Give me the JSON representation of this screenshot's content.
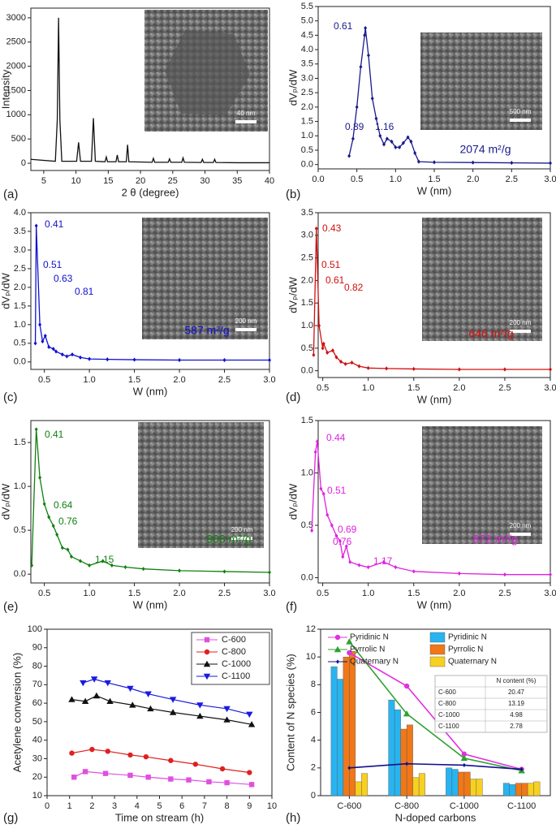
{
  "chart_data": [
    {
      "type": "line",
      "panel_label": "(a)",
      "x_label": "2 θ (degree)",
      "y_label": "Intensity",
      "color": "#111111",
      "image_scale": "40 nm",
      "x": [
        3,
        6.8,
        7.1,
        7.3,
        7.5,
        7.8,
        10.1,
        10.4,
        10.7,
        12.4,
        12.7,
        13.0,
        14.5,
        14.7,
        14.9,
        16.2,
        16.4,
        16.6,
        17.8,
        18.0,
        18.2,
        21.8,
        22.0,
        22.2,
        24.3,
        24.5,
        24.7,
        26.4,
        26.6,
        26.8,
        29.4,
        29.6,
        29.8,
        31.3,
        31.5,
        31.7,
        35,
        40
      ],
      "values": [
        80,
        40,
        900,
        3000,
        900,
        40,
        40,
        430,
        40,
        40,
        930,
        40,
        30,
        130,
        30,
        30,
        170,
        30,
        30,
        380,
        30,
        20,
        100,
        20,
        20,
        90,
        20,
        20,
        110,
        20,
        15,
        80,
        15,
        15,
        80,
        15,
        10,
        10
      ],
      "xlim": [
        3,
        40
      ],
      "xticks": [
        5,
        10,
        15,
        20,
        25,
        30,
        35,
        40
      ],
      "ylim": [
        -150,
        3200
      ],
      "yticks": [
        0,
        500,
        1000,
        1500,
        2000,
        2500,
        3000
      ]
    },
    {
      "type": "line",
      "panel_label": "(b)",
      "x_label": "W (nm)",
      "y_label": "dVₚ/dW",
      "color": "#1a1a8c",
      "marker": "diamond",
      "image_scale": "500 nm",
      "area": "2074 m²/g",
      "annotations": [
        "0.61",
        "0.89",
        "1.16"
      ],
      "x": [
        0.4,
        0.45,
        0.5,
        0.55,
        0.6,
        0.61,
        0.65,
        0.7,
        0.75,
        0.8,
        0.85,
        0.89,
        0.95,
        1.0,
        1.05,
        1.1,
        1.16,
        1.2,
        1.25,
        1.3,
        1.5,
        2.0,
        2.5,
        3.0
      ],
      "values": [
        0.3,
        0.9,
        2.0,
        3.4,
        4.5,
        4.75,
        3.8,
        2.3,
        1.6,
        1.0,
        0.7,
        0.9,
        0.8,
        0.6,
        0.6,
        0.75,
        0.95,
        0.8,
        0.4,
        0.1,
        0.08,
        0.07,
        0.06,
        0.05
      ],
      "xlim": [
        0,
        3
      ],
      "xticks": [
        {
          "value": 0,
          "label": "0.0"
        },
        0.5,
        {
          "value": 1,
          "label": "1.0"
        },
        1.5,
        {
          "value": 2,
          "label": "2.0"
        },
        2.5,
        {
          "value": 3,
          "label": "3.0"
        }
      ],
      "ylim": [
        -0.15,
        5.5
      ],
      "yticks": [
        {
          "value": 0,
          "label": "0.0"
        },
        0.5,
        {
          "value": 1,
          "label": "1.0"
        },
        1.5,
        {
          "value": 2,
          "label": "2.0"
        },
        2.5,
        {
          "value": 3,
          "label": "3.0"
        },
        3.5,
        {
          "value": 4,
          "label": "4.0"
        },
        4.5,
        {
          "value": 5,
          "label": "5.0"
        },
        5.5
      ]
    },
    {
      "type": "line",
      "panel_label": "(c)",
      "x_label": "W (nm)",
      "y_label": "dVₚ/dW",
      "color": "#1010d0",
      "marker": "diamond",
      "image_scale": "200 nm",
      "area": "587 m²/g",
      "annotations": [
        "0.41",
        "0.51",
        "0.63",
        "0.81"
      ],
      "x": [
        0.4,
        0.41,
        0.45,
        0.48,
        0.51,
        0.55,
        0.6,
        0.63,
        0.7,
        0.75,
        0.81,
        0.9,
        1.0,
        1.2,
        1.5,
        2.0,
        2.5,
        3.0
      ],
      "values": [
        0.5,
        3.65,
        1.0,
        0.55,
        0.7,
        0.4,
        0.35,
        0.28,
        0.2,
        0.15,
        0.2,
        0.12,
        0.08,
        0.07,
        0.06,
        0.05,
        0.05,
        0.05
      ],
      "xlim": [
        0.35,
        3
      ],
      "xticks": [
        0.5,
        {
          "value": 1,
          "label": "1.0"
        },
        1.5,
        {
          "value": 2,
          "label": "2.0"
        },
        2.5,
        {
          "value": 3,
          "label": "3.0"
        }
      ],
      "ylim": [
        -0.2,
        4
      ],
      "yticks": [
        {
          "value": 0,
          "label": "0.0"
        },
        0.5,
        {
          "value": 1,
          "label": "1.0"
        },
        1.5,
        {
          "value": 2,
          "label": "2.0"
        },
        2.5,
        {
          "value": 3,
          "label": "3.0"
        },
        3.5,
        {
          "value": 4,
          "label": "4.0"
        }
      ]
    },
    {
      "type": "line",
      "panel_label": "(d)",
      "x_label": "W (nm)",
      "y_label": "dVₚ/dW",
      "color": "#d01010",
      "marker": "diamond",
      "image_scale": "200 nm",
      "area": "646 m²/g",
      "annotations": [
        "0.43",
        "0.51",
        "0.61",
        "0.82"
      ],
      "x": [
        0.4,
        0.43,
        0.46,
        0.5,
        0.51,
        0.55,
        0.61,
        0.65,
        0.7,
        0.75,
        0.82,
        0.9,
        1.0,
        1.2,
        1.5,
        2.0,
        2.5,
        3.0
      ],
      "values": [
        0.35,
        3.15,
        1.0,
        0.5,
        0.6,
        0.4,
        0.45,
        0.3,
        0.2,
        0.15,
        0.18,
        0.1,
        0.06,
        0.05,
        0.04,
        0.03,
        0.03,
        0.03
      ],
      "xlim": [
        0.45,
        3
      ],
      "xticks": [
        0.5,
        {
          "value": 1,
          "label": "1.0"
        },
        1.5,
        {
          "value": 2,
          "label": "2.0"
        },
        2.5,
        {
          "value": 3,
          "label": "3.0"
        }
      ],
      "ylim": [
        -0.15,
        3.5
      ],
      "yticks": [
        {
          "value": 0,
          "label": "0.0"
        },
        0.5,
        {
          "value": 1,
          "label": "1.0"
        },
        1.5,
        {
          "value": 2,
          "label": "2.0"
        },
        2.5,
        {
          "value": 3,
          "label": "3.0"
        },
        3.5
      ]
    },
    {
      "type": "line",
      "panel_label": "(e)",
      "x_label": "W (nm)",
      "y_label": "dVₚ/dW",
      "color": "#108010",
      "marker": "diamond",
      "image_scale": "200 nm",
      "area": "903 m²/g",
      "annotations": [
        "0.41",
        "0.64",
        "0.76",
        "1.15"
      ],
      "x": [
        0.36,
        0.41,
        0.45,
        0.5,
        0.55,
        0.6,
        0.64,
        0.7,
        0.76,
        0.8,
        0.9,
        1.0,
        1.15,
        1.25,
        1.4,
        1.6,
        2.0,
        2.5,
        3.0
      ],
      "values": [
        0.1,
        1.65,
        1.1,
        0.8,
        0.65,
        0.55,
        0.45,
        0.3,
        0.28,
        0.2,
        0.15,
        0.1,
        0.15,
        0.1,
        0.08,
        0.06,
        0.04,
        0.03,
        0.02
      ],
      "xlim": [
        0.35,
        3
      ],
      "xticks": [
        0.5,
        {
          "value": 1,
          "label": "1.0"
        },
        1.5,
        {
          "value": 2,
          "label": "2.0"
        },
        2.5,
        {
          "value": 3,
          "label": "3.0"
        }
      ],
      "ylim": [
        -0.1,
        1.75
      ],
      "yticks": [
        {
          "value": 0,
          "label": "0.0"
        },
        0.5,
        {
          "value": 1,
          "label": "1.0"
        },
        1.5
      ]
    },
    {
      "type": "line",
      "panel_label": "(f)",
      "x_label": "W (nm)",
      "y_label": "dVₚ/dW",
      "color": "#e020e0",
      "marker": "diamond",
      "image_scale": "200 nm",
      "area": "872 m²/g",
      "annotations": [
        "0.44",
        "0.51",
        "0.69",
        "0.76",
        "1.17"
      ],
      "x": [
        0.38,
        0.42,
        0.44,
        0.48,
        0.51,
        0.55,
        0.6,
        0.65,
        0.69,
        0.72,
        0.76,
        0.8,
        0.9,
        1.0,
        1.17,
        1.3,
        1.5,
        2.0,
        2.5,
        3.0
      ],
      "values": [
        0.45,
        1.2,
        1.3,
        0.85,
        0.8,
        0.6,
        0.5,
        0.4,
        0.35,
        0.2,
        0.3,
        0.15,
        0.12,
        0.1,
        0.15,
        0.1,
        0.06,
        0.04,
        0.03,
        0.03
      ],
      "xlim": [
        0.45,
        3
      ],
      "xticks": [
        0.5,
        {
          "value": 1,
          "label": "1.0"
        },
        1.5,
        {
          "value": 2,
          "label": "2.0"
        },
        2.5,
        {
          "value": 3,
          "label": "3.0"
        }
      ],
      "ylim": [
        -0.05,
        1.5
      ],
      "yticks": [
        {
          "value": 0,
          "label": "0.0"
        },
        0.5,
        {
          "value": 1,
          "label": "1.0"
        },
        1.5
      ]
    },
    {
      "type": "multiline",
      "panel_label": "(g)",
      "x_label": "Time on stream (h)",
      "y_label": "Acetylene conversion (%)",
      "xlim": [
        0,
        10
      ],
      "xticks": [
        0,
        1,
        2,
        3,
        4,
        5,
        6,
        7,
        8,
        9,
        10
      ],
      "ylim": [
        10,
        100
      ],
      "yticks": [
        10,
        20,
        30,
        40,
        50,
        60,
        70,
        80,
        90,
        100
      ],
      "series": [
        {
          "name": "C-600",
          "color": "#e050e0",
          "marker": "square",
          "x": [
            1.2,
            1.7,
            2.6,
            3.7,
            4.5,
            5.5,
            6.3,
            7.2,
            8.0,
            9.1
          ],
          "values": [
            20,
            23,
            22,
            21,
            20,
            19,
            18.5,
            17.5,
            17,
            16
          ]
        },
        {
          "name": "C-800",
          "color": "#e02020",
          "marker": "circle",
          "x": [
            1.1,
            2.0,
            2.7,
            3.7,
            4.4,
            5.5,
            6.6,
            7.8,
            9.0
          ],
          "values": [
            33,
            35,
            34,
            32,
            31,
            29,
            27,
            24.5,
            22.5
          ]
        },
        {
          "name": "C-1000",
          "color": "#111111",
          "marker": "triangle",
          "x": [
            1.1,
            1.7,
            2.2,
            2.8,
            3.8,
            4.6,
            5.6,
            6.8,
            8.0,
            9.1
          ],
          "values": [
            62,
            61,
            64,
            61,
            59,
            57,
            55,
            53,
            51,
            48.5
          ]
        },
        {
          "name": "C-1100",
          "color": "#1a1ae0",
          "marker": "down",
          "x": [
            1.6,
            2.1,
            2.7,
            3.7,
            4.5,
            5.6,
            6.8,
            8.0,
            9.0
          ],
          "values": [
            71,
            73,
            71,
            68,
            65,
            62,
            59,
            57,
            54
          ]
        }
      ]
    },
    {
      "type": "bar",
      "panel_label": "(h)",
      "x_label": "N-doped carbons",
      "y_label": "Content of N species (%)",
      "categories": [
        "C-600",
        "C-800",
        "C-1000",
        "C-1100"
      ],
      "ylim": [
        0,
        12
      ],
      "yticks": [
        0,
        2,
        4,
        6,
        8,
        10,
        12
      ],
      "bar_series": [
        {
          "name": "Pyridinic N",
          "color": "#28b4f0",
          "values": [
            [
              9.3,
              8.4
            ],
            [
              6.9,
              6.2
            ],
            [
              2.0,
              1.9
            ],
            [
              0.9,
              0.8
            ]
          ]
        },
        {
          "name": "Pyrrolic N",
          "color": "#f07818",
          "values": [
            [
              10.0,
              10.4
            ],
            [
              4.8,
              5.1
            ],
            [
              1.7,
              1.7
            ],
            [
              0.9,
              0.9
            ]
          ]
        },
        {
          "name": "Quaternary N",
          "color": "#f8d020",
          "values": [
            [
              1.0,
              1.6
            ],
            [
              1.3,
              1.6
            ],
            [
              1.2,
              1.2
            ],
            [
              0.9,
              1.0
            ]
          ]
        }
      ],
      "line_series": [
        {
          "name": "Pyridinic N",
          "color": "#e030e0",
          "values": [
            10.3,
            7.9,
            3.0,
            1.9
          ]
        },
        {
          "name": "Pyrrolic N",
          "color": "#30a030",
          "values": [
            11.1,
            5.9,
            2.7,
            1.8
          ]
        },
        {
          "name": "Quaternary N",
          "color": "#101090",
          "values": [
            2.0,
            2.3,
            2.2,
            1.9
          ]
        }
      ],
      "table": {
        "header": "N content (%)",
        "rows": [
          [
            "C-600",
            20.47
          ],
          [
            "C-800",
            13.19
          ],
          [
            "C-1000",
            4.98
          ],
          [
            "C-1100",
            2.78
          ]
        ]
      }
    }
  ]
}
